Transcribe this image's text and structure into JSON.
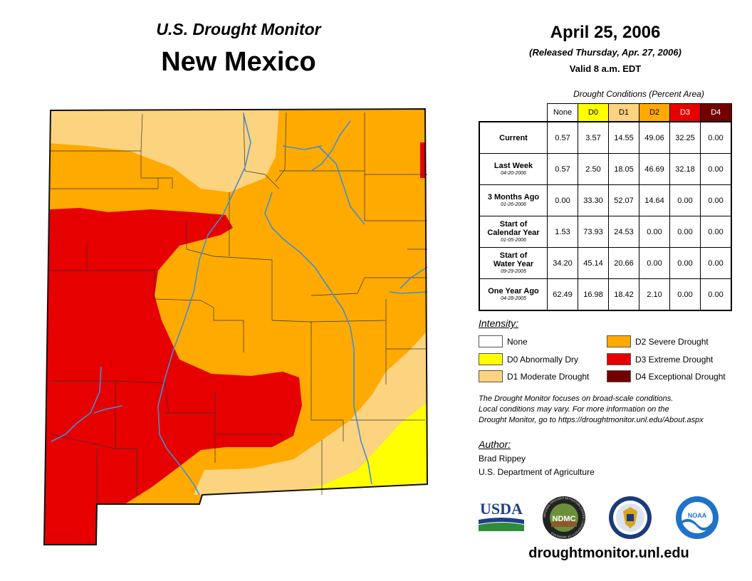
{
  "header": {
    "subtitle": "U.S. Drought Monitor",
    "state": "New Mexico",
    "date": "April 25, 2006",
    "released": "(Released Thursday, Apr. 27, 2006)",
    "valid": "Valid 8 a.m. EDT"
  },
  "table": {
    "caption": "Drought Conditions (Percent Area)",
    "columns": [
      "None",
      "D0",
      "D1",
      "D2",
      "D3",
      "D4"
    ],
    "column_colors": [
      "#ffffff",
      "#ffff00",
      "#fcd37f",
      "#ffaa00",
      "#e60000",
      "#730000"
    ],
    "column_text_colors": [
      "#000000",
      "#000000",
      "#000000",
      "#000000",
      "#ffffff",
      "#ffffff"
    ],
    "rows": [
      {
        "label": "Current",
        "label2": "",
        "date": "",
        "values": [
          "0.57",
          "3.57",
          "14.55",
          "49.06",
          "32.25",
          "0.00"
        ]
      },
      {
        "label": "Last Week",
        "label2": "",
        "date": "04-20-2006",
        "values": [
          "0.57",
          "2.50",
          "18.05",
          "46.69",
          "32.18",
          "0.00"
        ]
      },
      {
        "label": "3 Months Ago",
        "label2": "",
        "date": "01-26-2006",
        "values": [
          "0.00",
          "33.30",
          "52.07",
          "14.64",
          "0.00",
          "0.00"
        ]
      },
      {
        "label": "Start of",
        "label2": "Calendar Year",
        "date": "01-05-2006",
        "values": [
          "1.53",
          "73.93",
          "24.53",
          "0.00",
          "0.00",
          "0.00"
        ]
      },
      {
        "label": "Start of",
        "label2": "Water Year",
        "date": "09-29-2005",
        "values": [
          "34.20",
          "45.14",
          "20.66",
          "0.00",
          "0.00",
          "0.00"
        ]
      },
      {
        "label": "One Year Ago",
        "label2": "",
        "date": "04-28-2005",
        "values": [
          "62.49",
          "16.98",
          "18.42",
          "2.10",
          "0.00",
          "0.00"
        ]
      }
    ]
  },
  "legend": {
    "title": "Intensity:",
    "items": [
      {
        "label": "None",
        "color": "#ffffff"
      },
      {
        "label": "D0 Abnormally Dry",
        "color": "#ffff00"
      },
      {
        "label": "D1 Moderate Drought",
        "color": "#fcd37f"
      },
      {
        "label": "D2 Severe Drought",
        "color": "#ffaa00"
      },
      {
        "label": "D3 Extreme Drought",
        "color": "#e60000"
      },
      {
        "label": "D4 Exceptional Drought",
        "color": "#730000"
      }
    ]
  },
  "note": {
    "line1": "The Drought Monitor focuses on broad-scale conditions.",
    "line2": "Local conditions may vary. For more information on the",
    "line3": "Drought Monitor, go to https://droughtmonitor.unl.edu/About.aspx"
  },
  "author": {
    "title": "Author:",
    "name": "Brad Rippey",
    "org": "U.S. Department of Agriculture"
  },
  "logos": {
    "usda": "USDA",
    "ndmc": "NDMC",
    "ndmc_ring": "NATIONAL DROUGHT MITIGATION CENTER • UNIVERSITY OF NEBRASKA",
    "noaa": "NOAA",
    "usda_icon": "usda-logo-icon",
    "ndmc_icon": "ndmc-seal-icon",
    "commerce_icon": "department-of-commerce-seal-icon",
    "noaa_icon": "noaa-logo-icon"
  },
  "website": "droughtmonitor.unl.edu",
  "map": {
    "region": "New Mexico",
    "icon": "drought-map-icon"
  }
}
